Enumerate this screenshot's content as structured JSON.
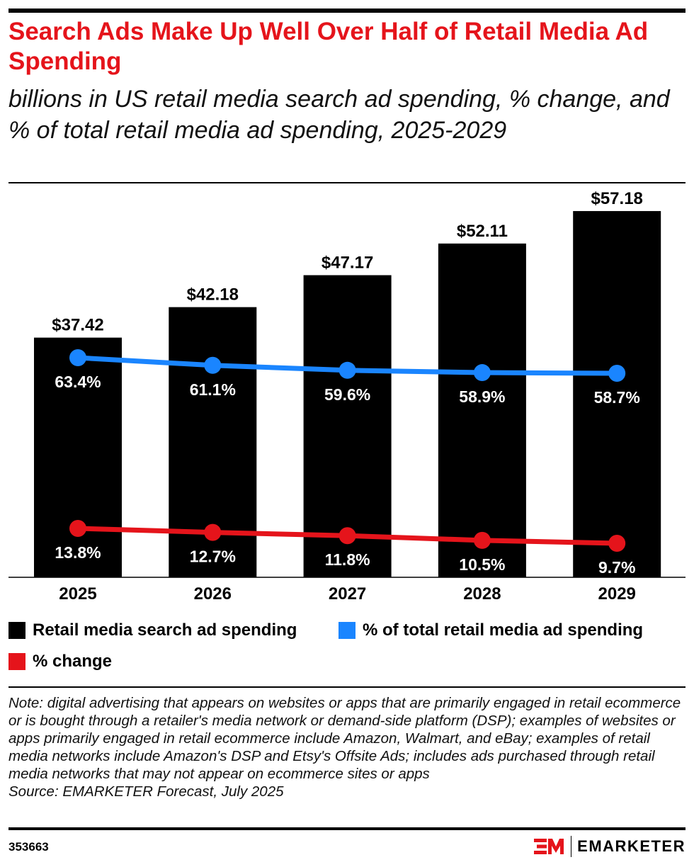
{
  "chart_data": {
    "type": "bar",
    "title": "Search Ads Make Up Well Over Half of Retail Media Ad Spending",
    "subtitle": "billions in US retail media search ad spending, % change, and % of total retail media ad spending, 2025-2029",
    "categories": [
      "2025",
      "2026",
      "2027",
      "2028",
      "2029"
    ],
    "series": [
      {
        "name": "Retail media search ad spending",
        "type": "bar",
        "values": [
          37.42,
          42.18,
          47.17,
          52.11,
          57.18
        ],
        "labels": [
          "$37.42",
          "$42.18",
          "$47.17",
          "$52.11",
          "$57.18"
        ],
        "color": "#000000"
      },
      {
        "name": "% of total retail media ad spending",
        "type": "line",
        "values": [
          63.4,
          61.1,
          59.6,
          58.9,
          58.7
        ],
        "labels": [
          "63.4%",
          "61.1%",
          "59.6%",
          "58.9%",
          "58.7%"
        ],
        "color": "#1a85ff"
      },
      {
        "name": "% change",
        "type": "line",
        "values": [
          13.8,
          12.7,
          11.8,
          10.5,
          9.7
        ],
        "labels": [
          "13.8%",
          "12.7%",
          "11.8%",
          "10.5%",
          "9.7%"
        ],
        "color": "#e5141b"
      }
    ],
    "ylim": [
      0,
      61.6
    ],
    "grid": false,
    "legend_position": "bottom"
  },
  "note": "Note: digital advertising that appears on websites or apps that are primarily engaged in retail ecommerce or is bought through a retailer's media network or demand-side platform (DSP); examples of websites or apps primarily engaged in retail ecommerce include Amazon, Walmart, and eBay; examples of retail media networks include Amazon's DSP and Etsy's Offsite Ads; includes ads purchased through retail media networks that may not appear on ecommerce sites or apps",
  "source": "Source: EMARKETER Forecast, July 2025",
  "chart_id": "353663",
  "brand": "EMARKETER"
}
